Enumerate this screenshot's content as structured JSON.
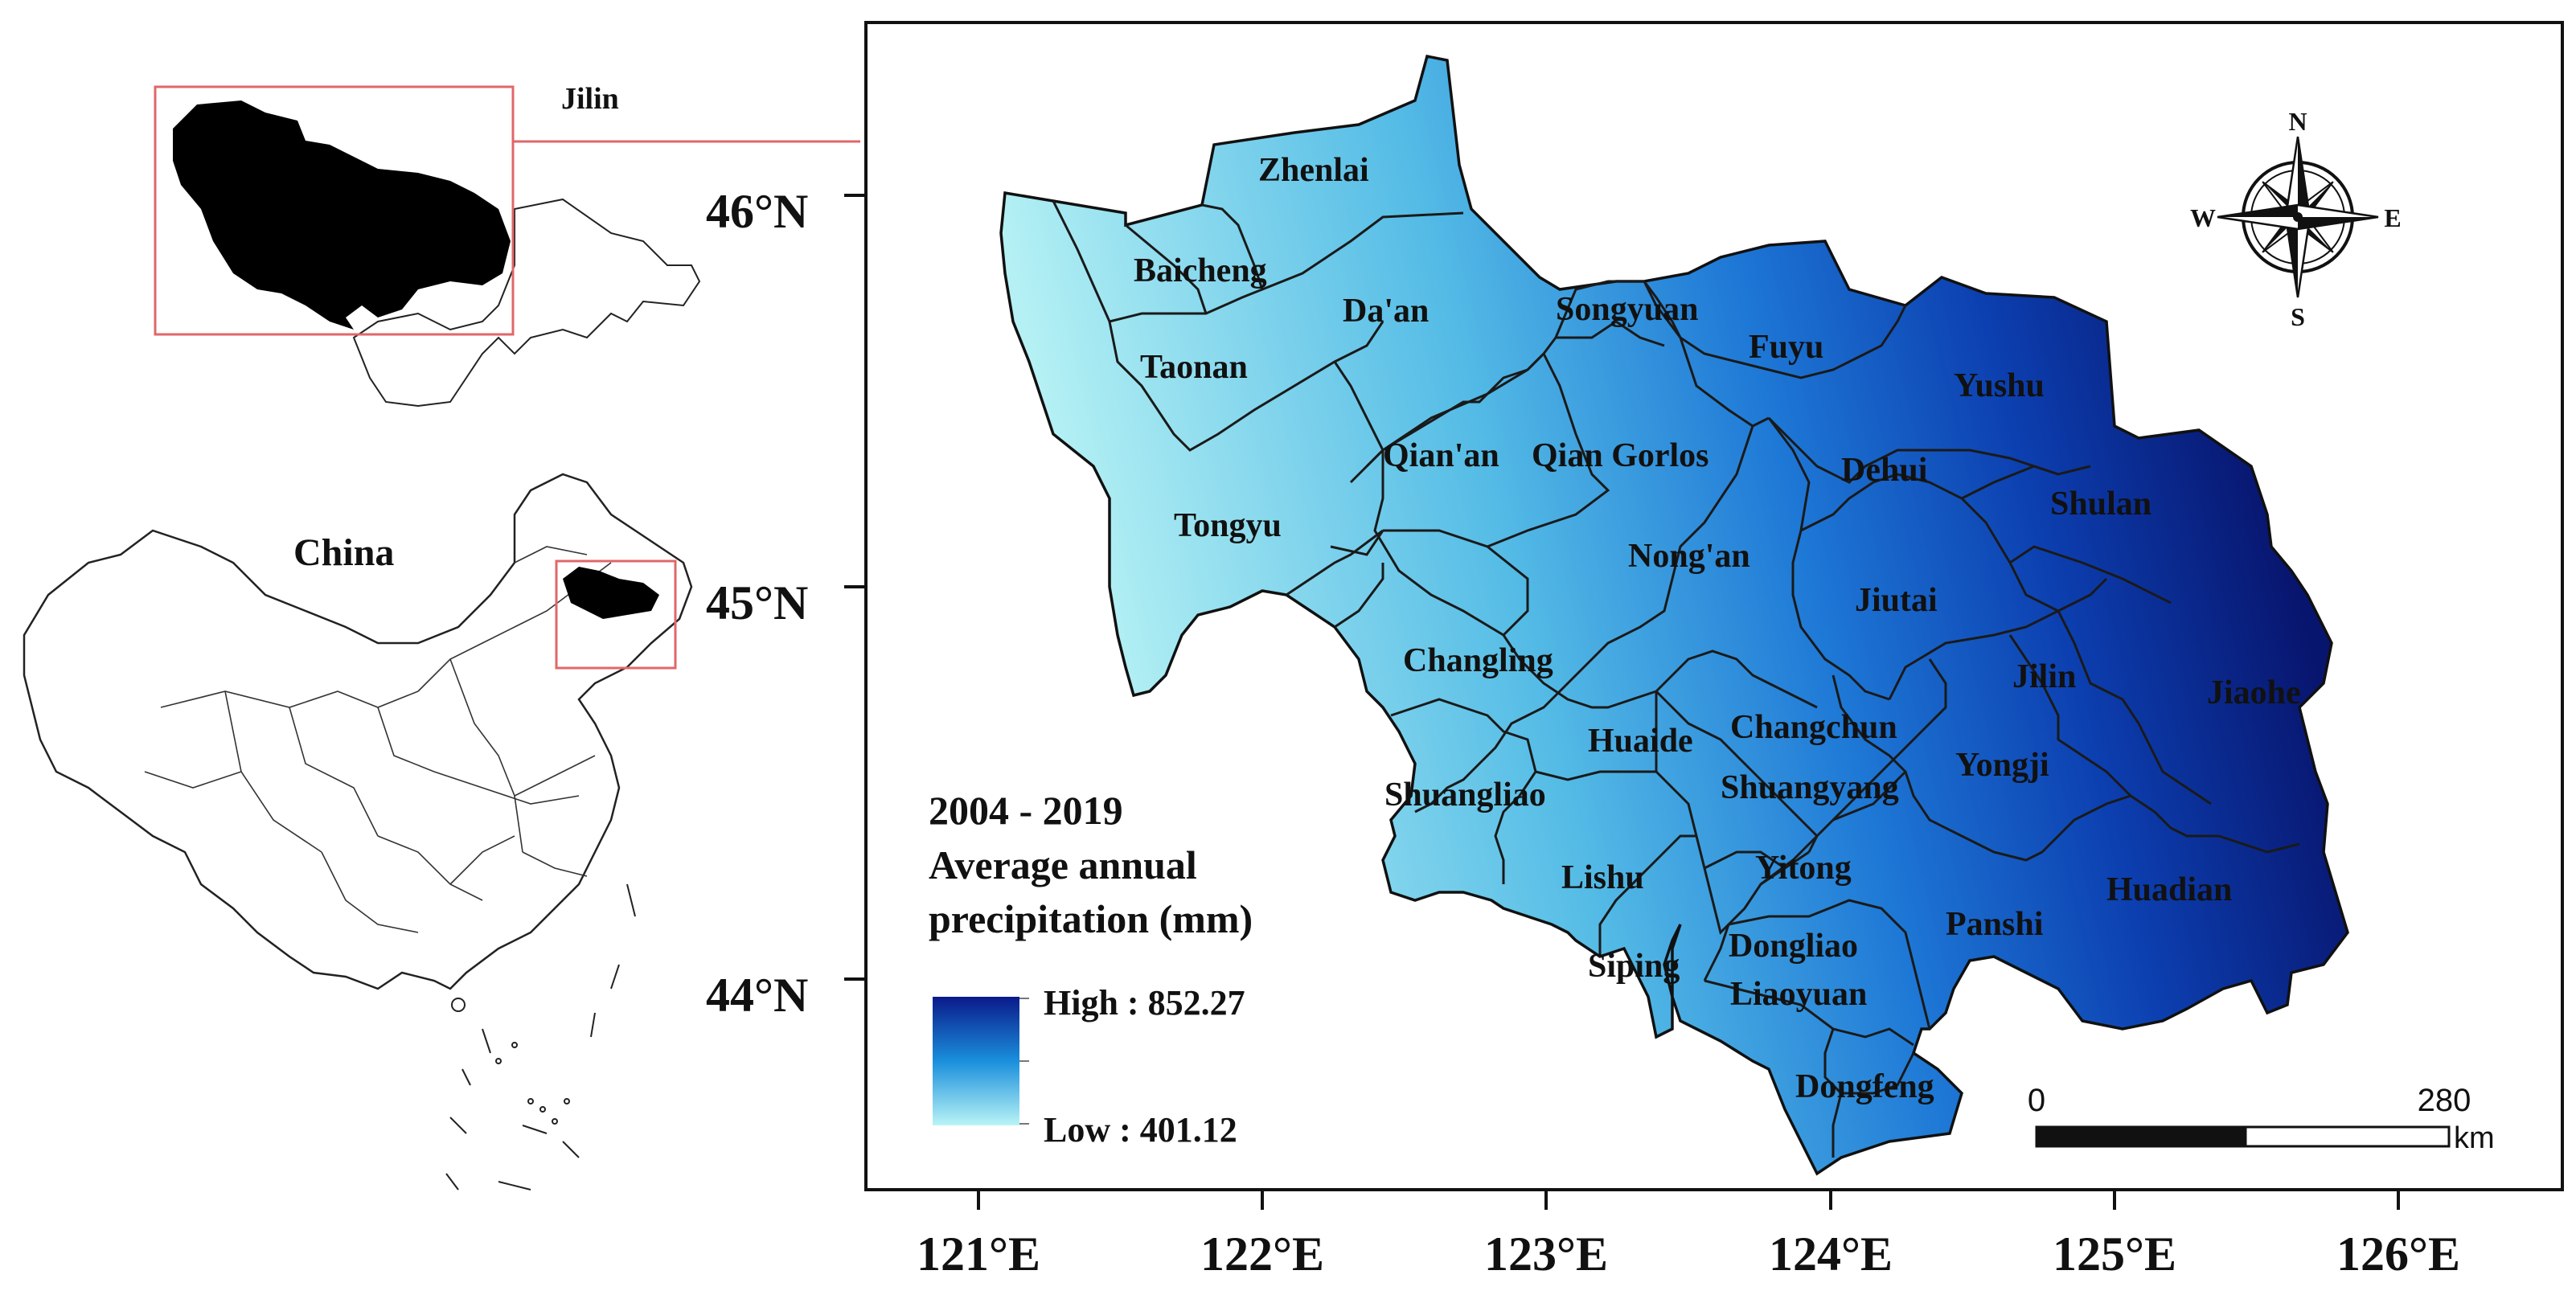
{
  "inset": {
    "province_label": "Jilin",
    "country_label": "China"
  },
  "map": {
    "lat_ticks": [
      "46°N",
      "45°N",
      "44°N"
    ],
    "lon_ticks": [
      "121°E",
      "122°E",
      "123°E",
      "124°E",
      "125°E",
      "126°E"
    ],
    "counties": [
      {
        "id": "zhenlai",
        "name": "Zhenlai"
      },
      {
        "id": "baicheng",
        "name": "Baicheng"
      },
      {
        "id": "daan",
        "name": "Da'an"
      },
      {
        "id": "songyuan",
        "name": "Songyuan"
      },
      {
        "id": "fuyu",
        "name": "Fuyu"
      },
      {
        "id": "yushu",
        "name": "Yushu"
      },
      {
        "id": "taonan",
        "name": "Taonan"
      },
      {
        "id": "qianan",
        "name": "Qian'an"
      },
      {
        "id": "qiangorlos",
        "name": "Qian Gorlos"
      },
      {
        "id": "dehui",
        "name": "Dehui"
      },
      {
        "id": "shulan",
        "name": "Shulan"
      },
      {
        "id": "tongyu",
        "name": "Tongyu"
      },
      {
        "id": "nongan",
        "name": "Nong'an"
      },
      {
        "id": "jiutai",
        "name": "Jiutai"
      },
      {
        "id": "changling",
        "name": "Changling"
      },
      {
        "id": "jilin",
        "name": "Jilin"
      },
      {
        "id": "jiaohe",
        "name": "Jiaohe"
      },
      {
        "id": "changchun",
        "name": "Changchun"
      },
      {
        "id": "huaide",
        "name": "Huaide"
      },
      {
        "id": "yongji",
        "name": "Yongji"
      },
      {
        "id": "shuangyang",
        "name": "Shuangyang"
      },
      {
        "id": "shuangliao",
        "name": "Shuangliao"
      },
      {
        "id": "yitong",
        "name": "Yitong"
      },
      {
        "id": "lishu",
        "name": "Lishu"
      },
      {
        "id": "huadian",
        "name": "Huadian"
      },
      {
        "id": "panshi",
        "name": "Panshi"
      },
      {
        "id": "dongliao",
        "name": "Dongliao"
      },
      {
        "id": "siping",
        "name": "Siping"
      },
      {
        "id": "liaoyuan",
        "name": "Liaoyuan"
      },
      {
        "id": "dongfeng",
        "name": "Dongfeng"
      }
    ],
    "compass": {
      "n": "N",
      "s": "S",
      "e": "E",
      "w": "W"
    },
    "scale_bar": {
      "start": "0",
      "end": "280",
      "unit": "km"
    }
  },
  "legend": {
    "title_line1": "2004 - 2019",
    "title_line2": "Average annual",
    "title_line3": "precipitation (mm)",
    "high_label": "High : 852.27",
    "low_label": "Low : 401.12",
    "high_color": "#0a1a8a",
    "mid_color": "#1a8fdc",
    "low_color": "#b9f4f6"
  }
}
